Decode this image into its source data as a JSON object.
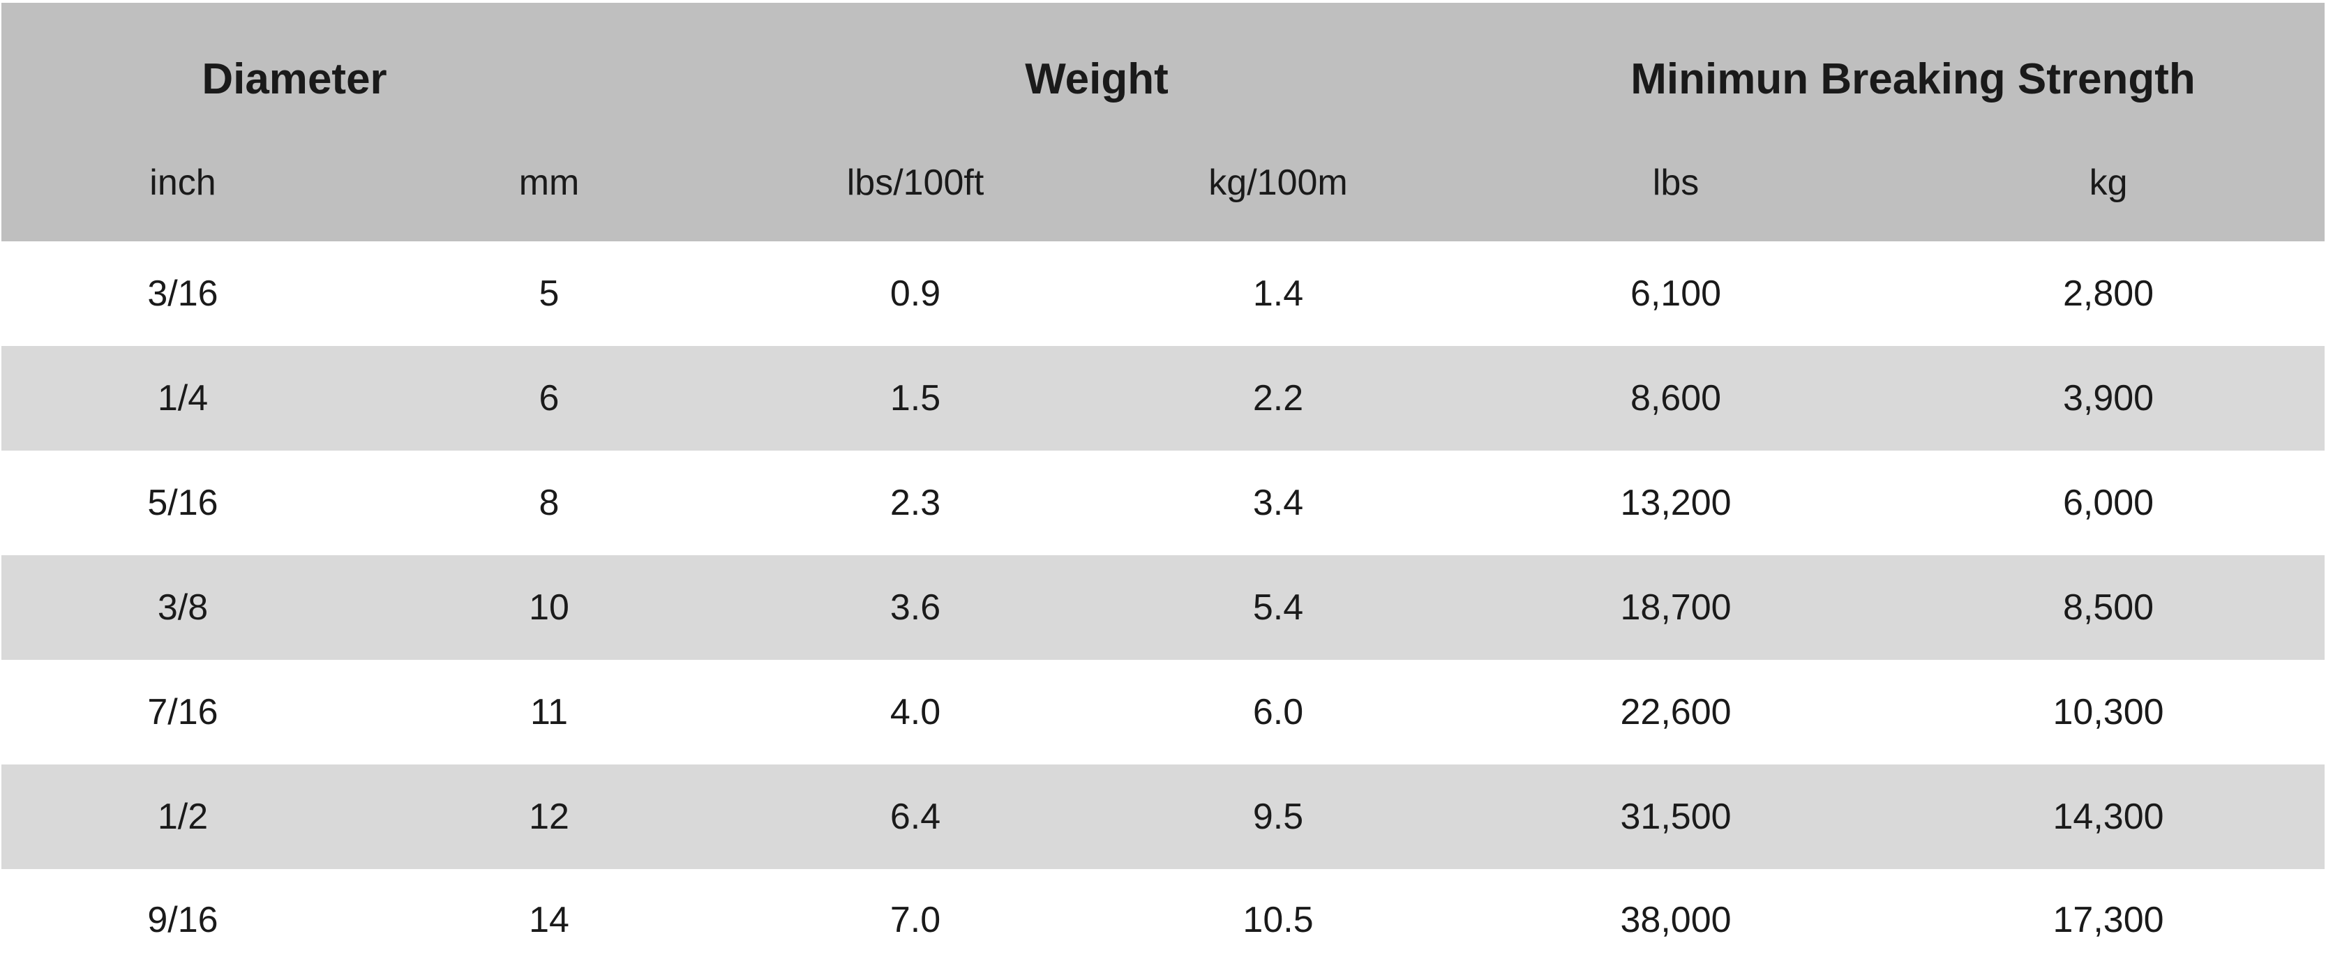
{
  "table": {
    "group_headers": [
      "Diameter",
      "Weight",
      "Minimun Breaking Strength"
    ],
    "unit_headers": [
      "inch",
      "mm",
      "lbs/100ft",
      "kg/100m",
      "lbs",
      "kg"
    ],
    "rows": [
      [
        "3/16",
        "5",
        "0.9",
        "1.4",
        "6,100",
        "2,800"
      ],
      [
        "1/4",
        "6",
        "1.5",
        "2.2",
        "8,600",
        "3,900"
      ],
      [
        "5/16",
        "8",
        "2.3",
        "3.4",
        "13,200",
        "6,000"
      ],
      [
        "3/8",
        "10",
        "3.6",
        "5.4",
        "18,700",
        "8,500"
      ],
      [
        "7/16",
        "11",
        "4.0",
        "6.0",
        "22,600",
        "10,300"
      ],
      [
        "1/2",
        "12",
        "6.4",
        "9.5",
        "31,500",
        "14,300"
      ],
      [
        "9/16",
        "14",
        "7.0",
        "10.5",
        "38,000",
        "17,300"
      ]
    ]
  },
  "colors": {
    "header_bg": "#bfbfbf",
    "stripe_bg": "#d9d9d9",
    "row_bg": "#ffffff",
    "text": "#1a1a1a"
  }
}
